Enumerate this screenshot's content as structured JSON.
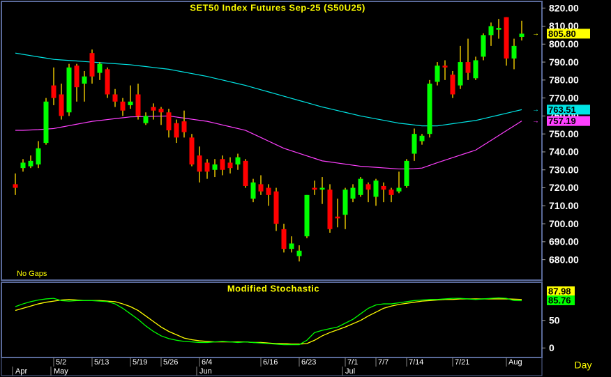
{
  "chart_data": [
    {
      "type": "candlestick",
      "title": "SET50 Index Futures Sep-25 (S50U25)",
      "annotation": "No Gaps",
      "open": [
        722,
        731,
        732,
        733,
        745,
        777,
        772,
        762,
        788,
        778,
        795,
        784,
        786,
        772,
        768,
        766,
        772,
        756,
        765,
        764,
        762,
        756,
        757,
        748,
        738,
        734,
        730,
        736,
        734,
        733,
        735,
        714,
        722,
        720,
        718,
        697,
        686,
        682,
        693,
        720,
        719,
        719,
        704,
        705,
        714,
        716,
        722,
        715,
        721,
        719,
        718,
        721,
        739,
        746,
        750,
        779,
        788,
        783,
        777,
        790,
        781,
        793,
        805,
        808,
        815,
        792,
        804
      ],
      "high": [
        728,
        736,
        738,
        746,
        770,
        787,
        778,
        789,
        789,
        785,
        797,
        790,
        787,
        775,
        770,
        777,
        778,
        762,
        767,
        765,
        764,
        758,
        763,
        750,
        743,
        736,
        736,
        738,
        737,
        739,
        736,
        725,
        727,
        722,
        720,
        700,
        693,
        688,
        716,
        724,
        726,
        722,
        714,
        720,
        722,
        726,
        723,
        725,
        723,
        720,
        729,
        736,
        753,
        750,
        780,
        790,
        791,
        785,
        799,
        803,
        793,
        806,
        812,
        814,
        815,
        803,
        813
      ],
      "low": [
        716,
        729,
        731,
        731,
        744,
        766,
        758,
        760,
        768,
        768,
        778,
        780,
        770,
        765,
        760,
        764,
        758,
        755,
        758,
        755,
        748,
        745,
        748,
        732,
        723,
        725,
        726,
        727,
        728,
        730,
        720,
        712,
        716,
        710,
        696,
        684,
        684,
        679,
        692,
        716,
        711,
        695,
        698,
        697,
        712,
        715,
        712,
        710,
        712,
        712,
        717,
        720,
        735,
        744,
        748,
        777,
        780,
        770,
        775,
        780,
        780,
        791,
        799,
        803,
        788,
        786,
        802
      ],
      "close": [
        720,
        734,
        735,
        742,
        768,
        770,
        760,
        787,
        776,
        782,
        782,
        789,
        772,
        768,
        763,
        768,
        760,
        760,
        763,
        762,
        752,
        748,
        751,
        733,
        729,
        729,
        733,
        730,
        731,
        737,
        721,
        723,
        718,
        716,
        700,
        686,
        689,
        685,
        716,
        719,
        720,
        697,
        703,
        719,
        720,
        725,
        719,
        724,
        719,
        716,
        720,
        735,
        750,
        749,
        778,
        788,
        787,
        772,
        790,
        784,
        791,
        805,
        810,
        809,
        792,
        799,
        805.8
      ],
      "close_label": "805.80",
      "up_color": "#00ff00",
      "down_color": "#ff0000",
      "wick_color": "#e6c200",
      "tag_color": "#ffff00",
      "series": [
        {
          "color": "#00e5e5",
          "last_label": "763.51",
          "values": [
            795,
            794.3,
            793.6,
            792.9,
            792.2,
            791.5,
            791.2,
            790.9,
            790.6,
            790.3,
            790,
            789.7,
            789.4,
            789.1,
            788.8,
            788.5,
            788,
            787.5,
            787,
            786.5,
            786,
            785.2,
            784.4,
            783.6,
            782.8,
            782,
            781,
            780,
            779,
            778,
            777,
            775.8,
            774.6,
            773.4,
            772.2,
            771,
            769.8,
            768.6,
            767.4,
            766.2,
            765,
            764,
            763,
            762,
            761,
            760,
            759.2,
            758.4,
            757.6,
            756.8,
            756,
            755.5,
            755,
            754.5,
            754.5,
            754.5,
            755.1,
            755.7,
            756.3,
            756.9,
            757.5,
            758.5,
            759.5,
            760.5,
            761.5,
            762.5,
            763.51
          ]
        },
        {
          "color": "#ff40ff",
          "last_label": "757.19",
          "values": [
            752,
            752,
            752.2,
            752.4,
            752.7,
            753,
            753.8,
            754.6,
            755.4,
            756.2,
            757,
            757.5,
            758,
            758.5,
            759,
            759.5,
            759.6,
            759.7,
            759.8,
            759.9,
            760,
            759.4,
            758.8,
            758.2,
            757.6,
            757,
            756,
            755,
            754,
            753,
            752,
            750,
            748,
            746,
            744,
            742,
            740.6,
            739.2,
            737.8,
            736.4,
            735,
            734.4,
            733.8,
            733.2,
            732.6,
            732,
            731.7,
            731.4,
            731.1,
            730.8,
            730.5,
            730.5,
            730.7,
            731,
            732.5,
            734,
            735.4,
            736.8,
            738.2,
            739.6,
            741,
            743.7,
            746.4,
            749.1,
            751.8,
            754.5,
            757.19
          ]
        }
      ],
      "ylim": [
        669,
        823
      ],
      "yticks": [
        {
          "value": 680,
          "label": "680.00"
        },
        {
          "value": 690,
          "label": "690.00"
        },
        {
          "value": 700,
          "label": "700.00"
        },
        {
          "value": 710,
          "label": "710.00"
        },
        {
          "value": 720,
          "label": "720.00"
        },
        {
          "value": 730,
          "label": "730.00"
        },
        {
          "value": 740,
          "label": "740.00"
        },
        {
          "value": 750,
          "label": "750.00"
        },
        {
          "value": 760,
          "label": "760.00"
        },
        {
          "value": 770,
          "label": "770.00"
        },
        {
          "value": 780,
          "label": "780.00"
        },
        {
          "value": 790,
          "label": "790.00"
        },
        {
          "value": 800,
          "label": "800.00"
        },
        {
          "value": 810,
          "label": "810.00"
        },
        {
          "value": 820,
          "label": "820.00"
        }
      ]
    },
    {
      "type": "line",
      "title": "Modified Stochastic",
      "xlabel": "Day",
      "series": [
        {
          "color": "#ffff00",
          "last_label": "87.98",
          "values": [
            68,
            72,
            76,
            80,
            83,
            85,
            87,
            88,
            87,
            86,
            86,
            86,
            85,
            84,
            80,
            75,
            68,
            58,
            48,
            38,
            30,
            24,
            18,
            15,
            13,
            12,
            11,
            11,
            11,
            11,
            11,
            10,
            10,
            9,
            8,
            8,
            7,
            7,
            8,
            14,
            22,
            28,
            33,
            38,
            44,
            50,
            58,
            65,
            72,
            76,
            79,
            81,
            83,
            85,
            86,
            87,
            88,
            88,
            89,
            89,
            89,
            89,
            89,
            89,
            89,
            88.5,
            87.98
          ]
        },
        {
          "color": "#00ff00",
          "last_label": "85.76",
          "values": [
            75,
            80,
            84,
            87,
            89,
            90,
            86,
            85,
            86,
            86,
            86,
            85,
            84,
            80,
            72,
            62,
            52,
            40,
            30,
            22,
            17,
            14,
            12,
            11,
            10,
            10,
            11,
            12,
            11,
            10,
            11,
            10,
            9,
            8,
            7,
            6,
            6,
            6,
            14,
            28,
            32,
            35,
            38,
            45,
            52,
            62,
            72,
            78,
            80,
            80,
            82,
            84,
            86,
            87,
            88,
            88,
            89,
            90,
            90,
            89,
            88,
            89,
            90,
            91,
            90,
            86,
            85.76
          ]
        }
      ],
      "ylim": [
        -16,
        118
      ],
      "yticks": [
        0,
        50
      ],
      "xticks": [
        {
          "value": 5,
          "label": "5/2"
        },
        {
          "value": 10,
          "label": "5/13"
        },
        {
          "value": 15,
          "label": "5/19"
        },
        {
          "value": 19,
          "label": "5/26"
        },
        {
          "value": 24,
          "label": "6/4"
        },
        {
          "value": 32,
          "label": "6/16"
        },
        {
          "value": 37,
          "label": "6/23"
        },
        {
          "value": 43,
          "label": "7/1"
        },
        {
          "value": 47,
          "label": "7/7"
        },
        {
          "value": 51,
          "label": "7/14"
        },
        {
          "value": 57,
          "label": "7/21"
        },
        {
          "value": 64,
          "label": "Aug"
        }
      ],
      "month_ticks": [
        {
          "value": 0,
          "label": "Apr"
        },
        {
          "value": 5,
          "label": "May"
        },
        {
          "value": 24,
          "label": "Jun"
        },
        {
          "value": 43,
          "label": "Jul"
        }
      ]
    }
  ]
}
